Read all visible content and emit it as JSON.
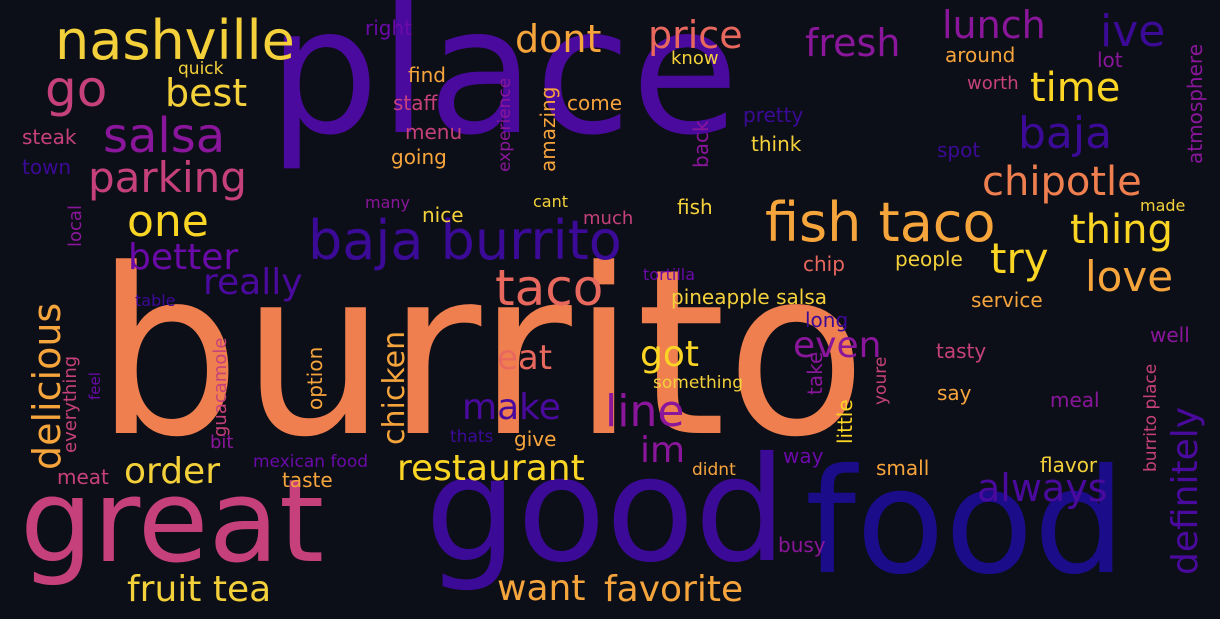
{
  "palette": {
    "background": "#0d0f18",
    "colors": [
      "#f07f4f",
      "#4a0a9e",
      "#3b0a96",
      "#1b0c8a",
      "#c6417c",
      "#f4d13a",
      "#f6a43c",
      "#e8685e",
      "#8a169b",
      "#b02b8f",
      "#fbd524",
      "#6a0aa8"
    ]
  },
  "words": [
    {
      "id": "burrito",
      "text": "burrito",
      "color": "#f07f4f"
    },
    {
      "id": "place",
      "text": "place",
      "color": "#4a0a9e"
    },
    {
      "id": "good",
      "text": "good",
      "color": "#3b0a96"
    },
    {
      "id": "food",
      "text": "food",
      "color": "#1b0c8a"
    },
    {
      "id": "great",
      "text": "great",
      "color": "#c6417c"
    },
    {
      "id": "nashville",
      "text": "nashville",
      "color": "#f4d13a"
    },
    {
      "id": "baja-burrito",
      "text": "baja burrito",
      "color": "#3b0a96"
    },
    {
      "id": "fish-taco",
      "text": "fish taco",
      "color": "#f6a43c"
    },
    {
      "id": "taco",
      "text": "taco",
      "color": "#e8685e"
    },
    {
      "id": "salsa",
      "text": "salsa",
      "color": "#8a169b"
    },
    {
      "id": "go",
      "text": "go",
      "color": "#c6417c"
    },
    {
      "id": "parking",
      "text": "parking",
      "color": "#c6417c"
    },
    {
      "id": "one",
      "text": "one",
      "color": "#fbd524"
    },
    {
      "id": "best",
      "text": "best",
      "color": "#f4d13a"
    },
    {
      "id": "dont",
      "text": "dont",
      "color": "#f6a43c"
    },
    {
      "id": "price",
      "text": "price",
      "color": "#e8685e"
    },
    {
      "id": "fresh",
      "text": "fresh",
      "color": "#8a169b"
    },
    {
      "id": "lunch",
      "text": "lunch",
      "color": "#8a169b"
    },
    {
      "id": "ive",
      "text": "ive",
      "color": "#3b0a96"
    },
    {
      "id": "time",
      "text": "time",
      "color": "#fbd524"
    },
    {
      "id": "baja",
      "text": "baja",
      "color": "#3b0a96"
    },
    {
      "id": "chipotle",
      "text": "chipotle",
      "color": "#f07f4f"
    },
    {
      "id": "thing",
      "text": "thing",
      "color": "#fbd524"
    },
    {
      "id": "try",
      "text": "try",
      "color": "#fbd524"
    },
    {
      "id": "love",
      "text": "love",
      "color": "#f6a43c"
    },
    {
      "id": "better",
      "text": "better",
      "color": "#6a0aa8"
    },
    {
      "id": "really",
      "text": "really",
      "color": "#4a0a9e"
    },
    {
      "id": "delicious",
      "text": "delicious",
      "color": "#f6a43c"
    },
    {
      "id": "chicken",
      "text": "chicken",
      "color": "#f6a43c"
    },
    {
      "id": "eat",
      "text": "eat",
      "color": "#e8685e"
    },
    {
      "id": "got",
      "text": "got",
      "color": "#fbd524"
    },
    {
      "id": "line",
      "text": "line",
      "color": "#8a169b"
    },
    {
      "id": "make",
      "text": "make",
      "color": "#4a0a9e"
    },
    {
      "id": "even",
      "text": "even",
      "color": "#8a169b"
    },
    {
      "id": "im",
      "text": "im",
      "color": "#8a169b"
    },
    {
      "id": "restaurant",
      "text": "restaurant",
      "color": "#fbd524"
    },
    {
      "id": "order",
      "text": "order",
      "color": "#f4d13a"
    },
    {
      "id": "always",
      "text": "always",
      "color": "#4a0a9e"
    },
    {
      "id": "definitely",
      "text": "definitely",
      "color": "#4a0a9e"
    },
    {
      "id": "fruit-tea",
      "text": "fruit tea",
      "color": "#f4d13a"
    },
    {
      "id": "want",
      "text": "want",
      "color": "#f6a43c"
    },
    {
      "id": "favorite",
      "text": "favorite",
      "color": "#f6a43c"
    },
    {
      "id": "right",
      "text": "right",
      "color": "#6a0aa8"
    },
    {
      "id": "quick",
      "text": "quick",
      "color": "#f4d13a"
    },
    {
      "id": "find",
      "text": "find",
      "color": "#f6a43c"
    },
    {
      "id": "staff",
      "text": "staff",
      "color": "#c6417c"
    },
    {
      "id": "menu",
      "text": "menu",
      "color": "#c6417c"
    },
    {
      "id": "going",
      "text": "going",
      "color": "#f6a43c"
    },
    {
      "id": "steak",
      "text": "steak",
      "color": "#c6417c"
    },
    {
      "id": "town",
      "text": "town",
      "color": "#3b0a96"
    },
    {
      "id": "experience",
      "text": "experience",
      "color": "#8a169b"
    },
    {
      "id": "amazing",
      "text": "amazing",
      "color": "#f6a43c"
    },
    {
      "id": "come",
      "text": "come",
      "color": "#f6a43c"
    },
    {
      "id": "know",
      "text": "know",
      "color": "#f4d13a"
    },
    {
      "id": "around",
      "text": "around",
      "color": "#f6a43c"
    },
    {
      "id": "lot",
      "text": "lot",
      "color": "#8a169b"
    },
    {
      "id": "worth",
      "text": "worth",
      "color": "#c6417c"
    },
    {
      "id": "atmosphere",
      "text": "atmosphere",
      "color": "#8a169b"
    },
    {
      "id": "pretty",
      "text": "pretty",
      "color": "#3b0a96"
    },
    {
      "id": "back",
      "text": "back",
      "color": "#8a169b"
    },
    {
      "id": "think",
      "text": "think",
      "color": "#f4d13a"
    },
    {
      "id": "spot",
      "text": "spot",
      "color": "#3b0a96"
    },
    {
      "id": "many",
      "text": "many",
      "color": "#8a169b"
    },
    {
      "id": "cant",
      "text": "cant",
      "color": "#f4d13a"
    },
    {
      "id": "nice",
      "text": "nice",
      "color": "#f4d13a"
    },
    {
      "id": "much",
      "text": "much",
      "color": "#c6417c"
    },
    {
      "id": "fish",
      "text": "fish",
      "color": "#f4d13a"
    },
    {
      "id": "made",
      "text": "made",
      "color": "#f4d13a"
    },
    {
      "id": "local",
      "text": "local",
      "color": "#8a169b"
    },
    {
      "id": "tortilla",
      "text": "tortilla",
      "color": "#6a0aa8"
    },
    {
      "id": "chip",
      "text": "chip",
      "color": "#e8685e"
    },
    {
      "id": "people",
      "text": "people",
      "color": "#f4d13a"
    },
    {
      "id": "table",
      "text": "table",
      "color": "#3b0a96"
    },
    {
      "id": "pineapple-salsa",
      "text": "pineapple salsa",
      "color": "#f4d13a"
    },
    {
      "id": "service",
      "text": "service",
      "color": "#f6a43c"
    },
    {
      "id": "well",
      "text": "well",
      "color": "#8a169b"
    },
    {
      "id": "long",
      "text": "long",
      "color": "#3b0a96"
    },
    {
      "id": "tasty",
      "text": "tasty",
      "color": "#c6417c"
    },
    {
      "id": "guacamole",
      "text": "guacamole",
      "color": "#c6417c"
    },
    {
      "id": "everything",
      "text": "everything",
      "color": "#c6417c"
    },
    {
      "id": "feel",
      "text": "feel",
      "color": "#6a0aa8"
    },
    {
      "id": "option",
      "text": "option",
      "color": "#f6a43c"
    },
    {
      "id": "something",
      "text": "something",
      "color": "#f4d13a"
    },
    {
      "id": "take",
      "text": "take",
      "color": "#8a169b"
    },
    {
      "id": "little",
      "text": "little",
      "color": "#fbd524"
    },
    {
      "id": "youre",
      "text": "youre",
      "color": "#c6417c"
    },
    {
      "id": "say",
      "text": "say",
      "color": "#f6a43c"
    },
    {
      "id": "meal",
      "text": "meal",
      "color": "#8a169b"
    },
    {
      "id": "burrito-place",
      "text": "burrito place",
      "color": "#c6417c"
    },
    {
      "id": "bit",
      "text": "bit",
      "color": "#8a169b"
    },
    {
      "id": "thats",
      "text": "thats",
      "color": "#3b0a96"
    },
    {
      "id": "give",
      "text": "give",
      "color": "#f6a43c"
    },
    {
      "id": "mexican-food",
      "text": "mexican food",
      "color": "#6a0aa8"
    },
    {
      "id": "didnt",
      "text": "didnt",
      "color": "#f6a43c"
    },
    {
      "id": "way",
      "text": "way",
      "color": "#6a0aa8"
    },
    {
      "id": "small",
      "text": "small",
      "color": "#f6a43c"
    },
    {
      "id": "flavor",
      "text": "flavor",
      "color": "#f4d13a"
    },
    {
      "id": "meat",
      "text": "meat",
      "color": "#c6417c"
    },
    {
      "id": "taste",
      "text": "taste",
      "color": "#f6a43c"
    },
    {
      "id": "busy",
      "text": "busy",
      "color": "#8a169b"
    }
  ]
}
